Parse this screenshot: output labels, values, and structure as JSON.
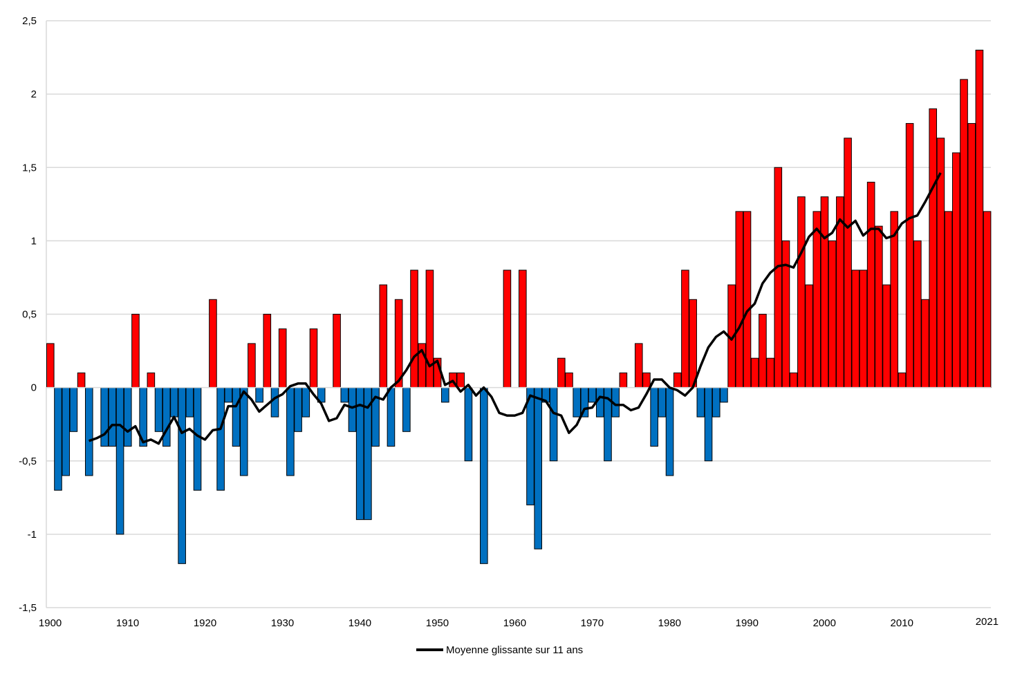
{
  "chart_data": {
    "type": "bar",
    "title": "",
    "xlabel": "",
    "ylabel": "",
    "ylim": [
      -1.5,
      2.5
    ],
    "y_ticks": [
      "-1,5",
      "-1",
      "-0,5",
      "0",
      "0,5",
      "1",
      "1,5",
      "2",
      "2,5"
    ],
    "y_tick_values": [
      -1.5,
      -1,
      -0.5,
      0,
      0.5,
      1,
      1.5,
      2,
      2.5
    ],
    "x_ticks": [
      "1900",
      "1910",
      "1920",
      "1930",
      "1940",
      "1950",
      "1960",
      "1970",
      "1980",
      "1990",
      "2000",
      "2010",
      "2021"
    ],
    "x_tick_values": [
      1900,
      1910,
      1920,
      1930,
      1940,
      1950,
      1960,
      1970,
      1980,
      1990,
      2000,
      2010,
      2021
    ],
    "grid": true,
    "legend_position": "bottom",
    "colors": {
      "positive": "#ff0000",
      "negative": "#0070c0",
      "line": "#000000",
      "grid": "#d9d9d9"
    },
    "x": [
      1900,
      1901,
      1902,
      1903,
      1904,
      1905,
      1906,
      1907,
      1908,
      1909,
      1910,
      1911,
      1912,
      1913,
      1914,
      1915,
      1916,
      1917,
      1918,
      1919,
      1920,
      1921,
      1922,
      1923,
      1924,
      1925,
      1926,
      1927,
      1928,
      1929,
      1930,
      1931,
      1932,
      1933,
      1934,
      1935,
      1936,
      1937,
      1938,
      1939,
      1940,
      1941,
      1942,
      1943,
      1944,
      1945,
      1946,
      1947,
      1948,
      1949,
      1950,
      1951,
      1952,
      1953,
      1954,
      1955,
      1956,
      1957,
      1958,
      1959,
      1960,
      1961,
      1962,
      1963,
      1964,
      1965,
      1966,
      1967,
      1968,
      1969,
      1970,
      1971,
      1972,
      1973,
      1974,
      1975,
      1976,
      1977,
      1978,
      1979,
      1980,
      1981,
      1982,
      1983,
      1984,
      1985,
      1986,
      1987,
      1988,
      1989,
      1990,
      1991,
      1992,
      1993,
      1994,
      1995,
      1996,
      1997,
      1998,
      1999,
      2000,
      2001,
      2002,
      2003,
      2004,
      2005,
      2006,
      2007,
      2008,
      2009,
      2010,
      2011,
      2012,
      2013,
      2014,
      2015,
      2016,
      2017,
      2018,
      2019,
      2020,
      2021
    ],
    "values": [
      0.3,
      -0.7,
      -0.6,
      -0.3,
      0.1,
      -0.6,
      0,
      -0.4,
      -0.4,
      -1.0,
      -0.4,
      0.5,
      -0.4,
      0.1,
      -0.3,
      -0.4,
      -0.2,
      -1.2,
      -0.2,
      -0.7,
      0,
      0.6,
      -0.7,
      -0.1,
      -0.4,
      -0.6,
      0.3,
      -0.1,
      0.5,
      -0.2,
      0.4,
      -0.6,
      -0.3,
      -0.2,
      0.4,
      -0.1,
      0,
      0.5,
      -0.1,
      -0.3,
      -0.9,
      -0.9,
      -0.4,
      0.7,
      -0.4,
      0.6,
      -0.3,
      0.8,
      0.3,
      0.8,
      0.2,
      -0.1,
      0.1,
      0.1,
      -0.5,
      0,
      -1.2,
      0,
      0,
      0.8,
      0,
      0.8,
      -0.8,
      -1.1,
      -0.1,
      -0.5,
      0.2,
      0.1,
      -0.2,
      -0.2,
      -0.1,
      -0.2,
      -0.5,
      -0.2,
      0.1,
      0,
      0.3,
      0.1,
      -0.4,
      -0.2,
      -0.6,
      0.1,
      0.8,
      0.6,
      -0.2,
      -0.5,
      -0.2,
      -0.1,
      0.7,
      1.2,
      1.2,
      0.2,
      0.5,
      0.2,
      1.5,
      1.0,
      0.1,
      1.3,
      0.7,
      1.2,
      1.3,
      1.0,
      1.3,
      1.7,
      0.8,
      0.8,
      1.4,
      1.1,
      0.7,
      1.2,
      0.1,
      1.8,
      1.0,
      0.6,
      1.9,
      1.7,
      1.2,
      1.6,
      2.1,
      1.8,
      2.3,
      1.2
    ],
    "moving_average": {
      "type": "line",
      "name": "Moyenne glissante sur 11 ans",
      "window": 11,
      "x_range": [
        1905,
        2015
      ]
    }
  }
}
